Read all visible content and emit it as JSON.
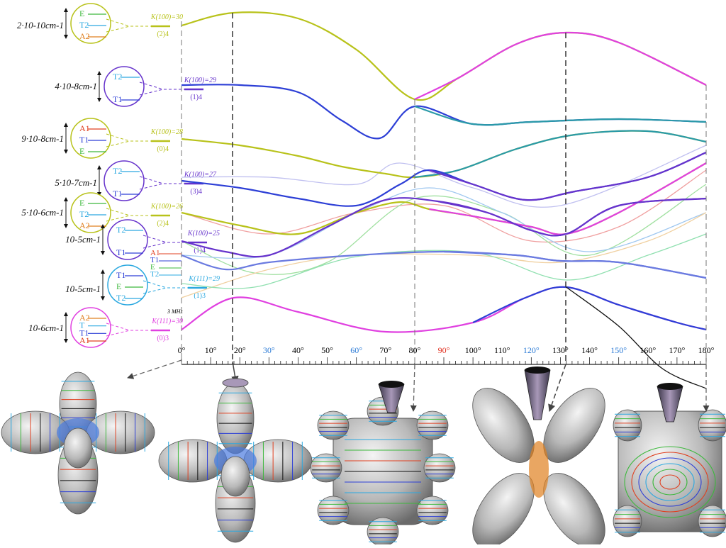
{
  "colors": {
    "yellow": "#b8c21a",
    "blue": "#2d3fd6",
    "purple": "#6633cc",
    "magenta": "#e040e0",
    "cyan": "#2aa8e0",
    "green": "#3cb83c",
    "red": "#e04020",
    "orange": "#e08020",
    "teal": "#2a9aa8",
    "axis": "#222222",
    "dash": "#555555"
  },
  "axis": {
    "ticks": [
      "0°",
      "10°",
      "20°",
      "30°",
      "40°",
      "50°",
      "60°",
      "70°",
      "80°",
      "90°",
      "100°",
      "110°",
      "120°",
      "130°",
      "140°",
      "150°",
      "160°",
      "170°",
      "180°"
    ],
    "tick_colors": [
      "#000",
      "#000",
      "#000",
      "#2a7ad6",
      "#000",
      "#000",
      "#2a7ad6",
      "#000",
      "#000",
      "#e03020",
      "#000",
      "#000",
      "#2a7ad6",
      "#000",
      "#000",
      "#2a7ad6",
      "#000",
      "#000",
      "#000"
    ],
    "scale_label": "3 MHz"
  },
  "levels": [
    {
      "id": "l1",
      "label": "2·10-10cm-1",
      "color": "#b8c21a",
      "k_label": "K(100)=30",
      "sub_label": "(2)4",
      "states": [
        "E",
        "T2",
        "A2"
      ],
      "state_colors": [
        "#3cb83c",
        "#2aa8e0",
        "#e08020"
      ]
    },
    {
      "id": "l2",
      "label": "4·10-8cm-1",
      "color": "#6633cc",
      "k_label": "K(100)=29",
      "sub_label": "(1)4",
      "states": [
        "T2",
        "T1"
      ],
      "state_colors": [
        "#2aa8e0",
        "#2d3fd6"
      ]
    },
    {
      "id": "l3",
      "label": "9·10-8cm-1",
      "color": "#b8c21a",
      "k_label": "K(100)=28",
      "sub_label": "(0)4",
      "states": [
        "A1",
        "T1",
        "E"
      ],
      "state_colors": [
        "#e04020",
        "#2d3fd6",
        "#3cb83c"
      ]
    },
    {
      "id": "l4",
      "label": "5·10-7cm-1",
      "color": "#6633cc",
      "k_label": "K(100)=27",
      "sub_label": "(3)4",
      "states": [
        "T2",
        "T1"
      ],
      "state_colors": [
        "#2aa8e0",
        "#2d3fd6"
      ]
    },
    {
      "id": "l5",
      "label": "5·10-6cm-1",
      "color": "#b8c21a",
      "k_label": "K(100)=26",
      "sub_label": "(2)4",
      "states": [
        "E",
        "T2",
        "A2"
      ],
      "state_colors": [
        "#3cb83c",
        "#2aa8e0",
        "#e08020"
      ]
    },
    {
      "id": "l6",
      "label": "10-5cm-1",
      "color": "#6633cc",
      "k_label": "K(100)=25",
      "sub_label": "(1)4",
      "states": [
        "T2",
        "T1"
      ],
      "state_colors": [
        "#2aa8e0",
        "#2d3fd6"
      ]
    },
    {
      "id": "l7",
      "label": "10-5cm-1",
      "color": "#2aa8e0",
      "k_label": "K(111)=29",
      "sub_label": "(1)3",
      "states": [
        "T1",
        "E",
        "T2"
      ],
      "state_colors": [
        "#2d3fd6",
        "#3cb83c",
        "#2aa8e0"
      ]
    },
    {
      "id": "l8",
      "label": "10-6cm-1",
      "color": "#e040e0",
      "k_label": "K(111)=30",
      "sub_label": "(0)3",
      "states": [
        "A2",
        "T",
        "T1",
        "A1"
      ],
      "state_colors": [
        "#e08020",
        "#2aa8e0",
        "#2d3fd6",
        "#e04020"
      ]
    }
  ],
  "side_states": [
    "A1",
    "T1",
    "E",
    "T2"
  ],
  "curves": [
    {
      "name": "c1",
      "color": "#b8c21a",
      "alt": "#e040e0"
    },
    {
      "name": "c2",
      "color": "#2d3fd6",
      "alt": "#2a9aa8"
    },
    {
      "name": "c3",
      "color": "#b8c21a",
      "alt": "#2a9aa8"
    },
    {
      "name": "c4",
      "color": "#2d3fd6",
      "alt": "#6633cc"
    },
    {
      "name": "c5",
      "color": "#b8c21a",
      "alt": "#e040e0"
    },
    {
      "name": "c6",
      "color": "#6633cc",
      "alt": "#6633cc"
    },
    {
      "name": "c7",
      "color": "#6a7ae0",
      "alt": "#6a7ae0"
    },
    {
      "name": "c8",
      "color": "#e040e0",
      "alt": "#2d3fd6"
    }
  ],
  "surfaces": [
    {
      "id": "s1",
      "type": "cross"
    },
    {
      "id": "s2",
      "type": "cross-tall"
    },
    {
      "id": "s3",
      "type": "octa"
    },
    {
      "id": "s4",
      "type": "x-cone"
    },
    {
      "id": "s5",
      "type": "cube-cone"
    }
  ]
}
